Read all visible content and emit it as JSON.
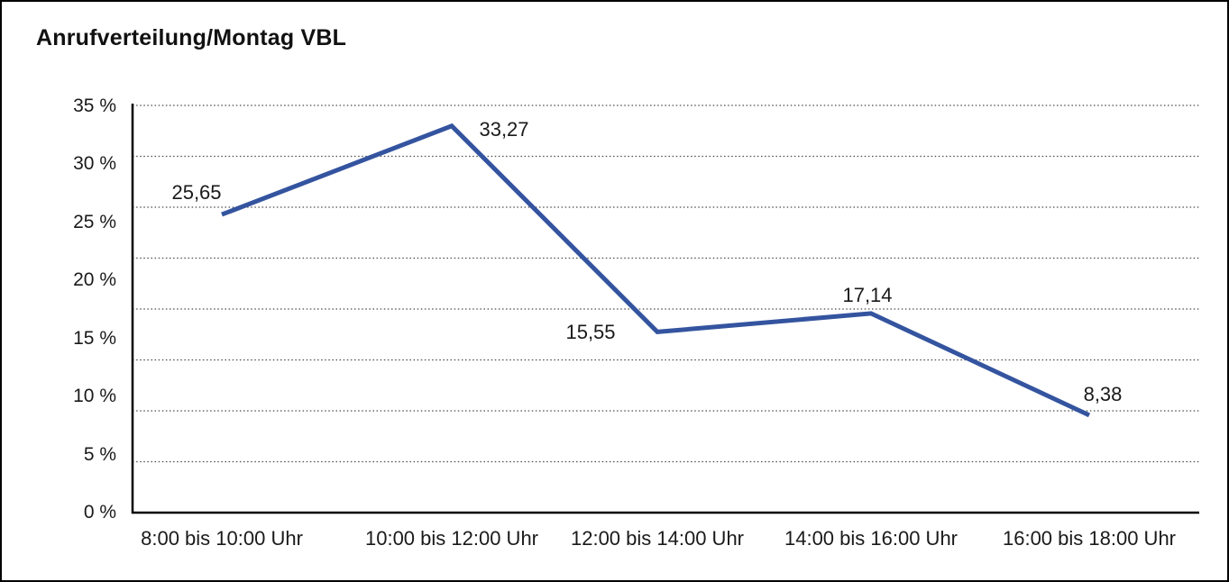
{
  "header": {
    "title": "Anrufverteilung/Montag VBL"
  },
  "chart_data": {
    "type": "line",
    "title": "Anrufverteilung/Montag VBL",
    "categories": [
      "8:00 bis 10:00 Uhr",
      "10:00 bis 12:00 Uhr",
      "12:00 bis 14:00 Uhr",
      "14:00 bis 16:00 Uhr",
      "16:00 bis 18:00 Uhr"
    ],
    "values": [
      25.65,
      33.27,
      15.55,
      17.14,
      8.38
    ],
    "point_labels": [
      "25,65",
      "33,27",
      "15,55",
      "17,14",
      "8,38"
    ],
    "y_tick_labels": [
      "35 %",
      "30 %",
      "25 %",
      "20 %",
      "15 %",
      "10 %",
      "5 %",
      "0 %"
    ],
    "y_tick_values": [
      35,
      30,
      25,
      20,
      15,
      10,
      5,
      0
    ],
    "ylim": [
      0,
      35
    ],
    "xlabel": "",
    "ylabel": "",
    "grid": "dotted-horizontal",
    "legend": "none",
    "line_color": "#34549f",
    "axis_color": "#000000",
    "gridline_color": "#4a4a4a",
    "text_color": "#1a1a1a"
  }
}
